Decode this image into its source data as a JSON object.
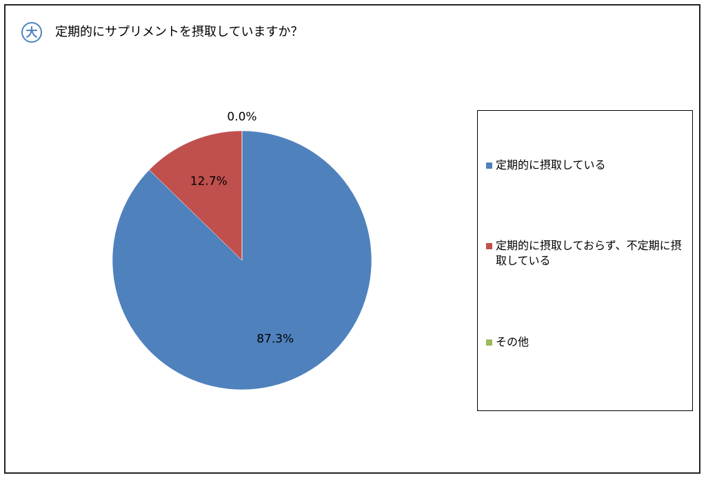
{
  "chart_data": {
    "type": "pie",
    "badge": "大",
    "title": "定期的にサプリメントを摂取していますか？",
    "categories": [
      "定期的に摂取している",
      "定期的に摂取しておらず、不定期に摂取している",
      "その他"
    ],
    "values": [
      87.3,
      12.7,
      0.0
    ],
    "value_labels": [
      "87.3%",
      "12.7%",
      "0.0%"
    ],
    "colors": [
      "#4f81bd",
      "#c0504d",
      "#9bbb59"
    ],
    "start_angle": 0,
    "direction": "clockwise",
    "legend": "right"
  }
}
